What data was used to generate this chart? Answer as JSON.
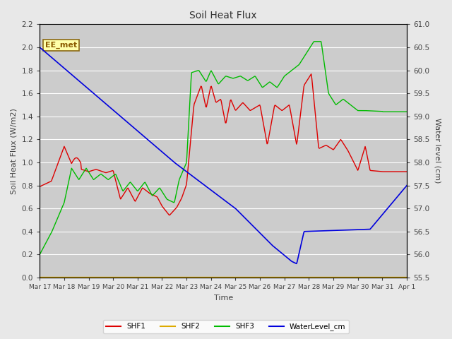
{
  "title": "Soil Heat Flux",
  "xlabel": "Time",
  "ylabel_left": "Soil Heat Flux (W/m2)",
  "ylabel_right": "Water level (cm)",
  "annotation": "EE_met",
  "ylim_left": [
    0.0,
    2.2
  ],
  "ylim_right": [
    55.5,
    61.0
  ],
  "bg_color": "#e8e8e8",
  "plot_bg_color": "#cccccc",
  "grid_color": "#ffffff",
  "shf1_color": "#dd0000",
  "shf2_color": "#ddaa00",
  "shf3_color": "#00bb00",
  "water_color": "#0000dd",
  "xtick_labels": [
    "Mar 17",
    "Mar 18",
    "Mar 19",
    "Mar 20",
    "Mar 21",
    "Mar 22",
    "Mar 23",
    "Mar 24",
    "Mar 25",
    "Mar 26",
    "Mar 27",
    "Mar 28",
    "Mar 29",
    "Mar 30",
    "Mar 31",
    "Apr 1"
  ],
  "yticks_left": [
    0.0,
    0.2,
    0.4,
    0.6,
    0.8,
    1.0,
    1.2,
    1.4,
    1.6,
    1.8,
    2.0,
    2.2
  ],
  "yticks_right": [
    55.5,
    56.0,
    56.5,
    57.0,
    57.5,
    58.0,
    58.5,
    59.0,
    59.5,
    60.0,
    60.5,
    61.0
  ]
}
